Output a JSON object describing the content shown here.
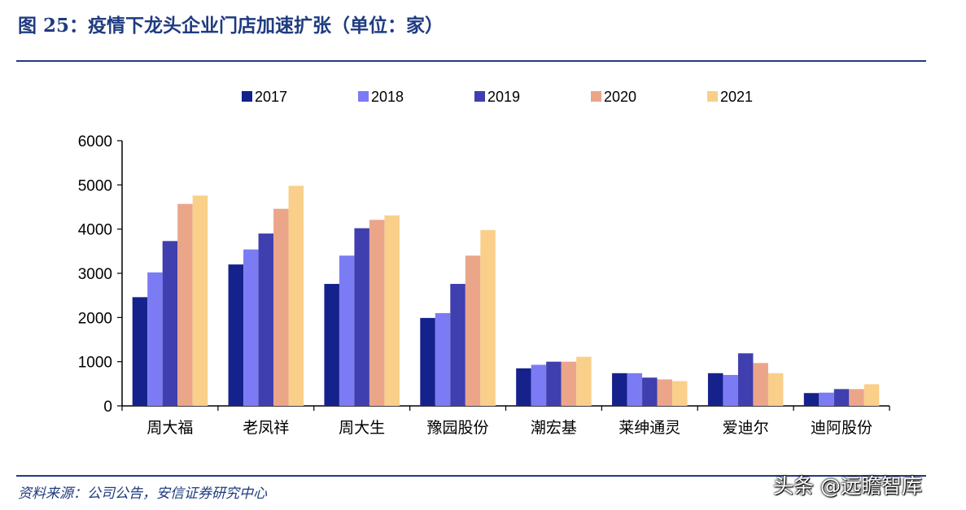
{
  "header": {
    "title": "图 25：疫情下龙头企业门店加速扩张（单位：家）"
  },
  "footer": {
    "source": "资料来源：公司公告，安信证券研究中心",
    "watermark": "头条 @远瞻智库"
  },
  "chart_data": {
    "type": "bar",
    "categories": [
      "周大福",
      "老凤祥",
      "周大生",
      "豫园股份",
      "潮宏基",
      "莱绅通灵",
      "爱迪尔",
      "迪阿股份"
    ],
    "series": [
      {
        "name": "2017",
        "color": "#15228c",
        "values": [
          2460,
          3200,
          2760,
          1990,
          850,
          740,
          740,
          290
        ]
      },
      {
        "name": "2018",
        "color": "#7b7cf4",
        "values": [
          3020,
          3540,
          3400,
          2100,
          930,
          740,
          700,
          300
        ]
      },
      {
        "name": "2019",
        "color": "#3f3fb0",
        "values": [
          3730,
          3900,
          4020,
          2760,
          1000,
          640,
          1190,
          380
        ]
      },
      {
        "name": "2020",
        "color": "#eba68a",
        "values": [
          4570,
          4460,
          4210,
          3400,
          1000,
          600,
          970,
          380
        ]
      },
      {
        "name": "2021",
        "color": "#f9cf8a",
        "values": [
          4760,
          4980,
          4310,
          3980,
          1110,
          560,
          740,
          490
        ]
      }
    ],
    "yticks": [
      "0",
      "1000",
      "2000",
      "3000",
      "4000",
      "5000",
      "6000"
    ],
    "ylim": [
      0,
      6000
    ],
    "legend_position": "top",
    "grid": false
  }
}
